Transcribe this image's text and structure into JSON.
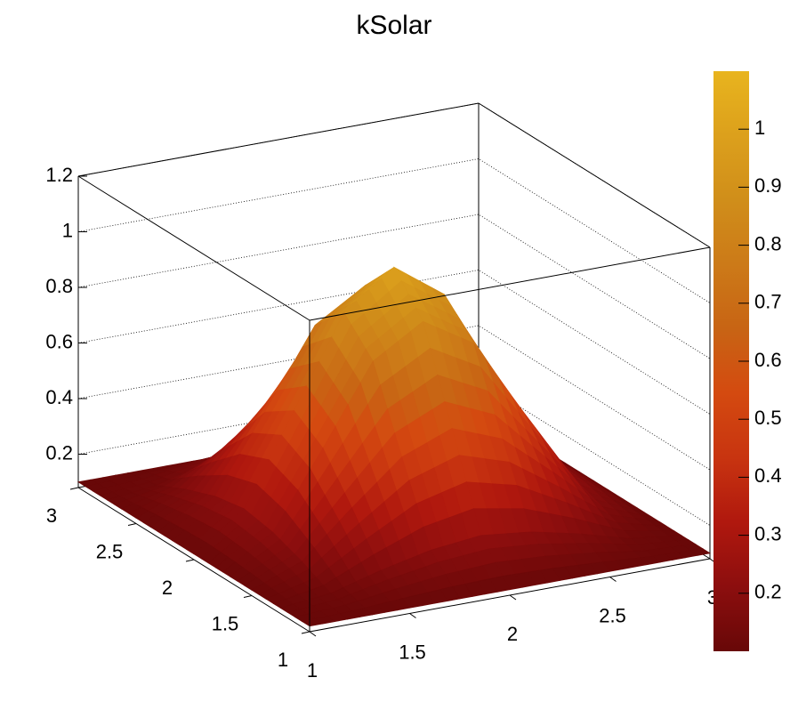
{
  "chart_data": {
    "type": "surface",
    "title": "kSolar",
    "x": [
      1,
      1.25,
      1.5,
      1.75,
      2,
      2.25,
      2.5,
      2.75,
      3
    ],
    "y": [
      1,
      1.25,
      1.5,
      1.75,
      2,
      2.25,
      2.5,
      2.75,
      3
    ],
    "z": [
      [
        0.1,
        0.1,
        0.1,
        0.1,
        0.1,
        0.1,
        0.1,
        0.1,
        0.1
      ],
      [
        0.1,
        0.12,
        0.17,
        0.21,
        0.23,
        0.21,
        0.17,
        0.12,
        0.1
      ],
      [
        0.1,
        0.17,
        0.33,
        0.48,
        0.55,
        0.48,
        0.33,
        0.17,
        0.1
      ],
      [
        0.1,
        0.21,
        0.48,
        0.76,
        0.87,
        0.76,
        0.48,
        0.21,
        0.1
      ],
      [
        0.1,
        0.23,
        0.55,
        0.87,
        1,
        0.87,
        0.55,
        0.23,
        0.1
      ],
      [
        0.1,
        0.21,
        0.48,
        0.76,
        0.87,
        0.76,
        0.48,
        0.21,
        0.1
      ],
      [
        0.1,
        0.17,
        0.33,
        0.48,
        0.55,
        0.48,
        0.33,
        0.17,
        0.1
      ],
      [
        0.1,
        0.12,
        0.17,
        0.21,
        0.23,
        0.21,
        0.17,
        0.12,
        0.1
      ],
      [
        0.1,
        0.1,
        0.1,
        0.1,
        0.1,
        0.1,
        0.1,
        0.1,
        0.1
      ]
    ],
    "xlim": [
      1,
      3
    ],
    "ylim": [
      1,
      3
    ],
    "zlim": [
      0.08,
      1.2
    ],
    "xticks": [
      1,
      1.5,
      2,
      2.5,
      3
    ],
    "yticks": [
      1,
      1.5,
      2,
      2.5,
      3
    ],
    "zticks": [
      0.2,
      0.4,
      0.6,
      0.8,
      1,
      1.2
    ],
    "colorbar": {
      "lim": [
        0.1,
        1.1
      ],
      "ticks": [
        0.2,
        0.3,
        0.4,
        0.5,
        0.6,
        0.7,
        0.8,
        0.9,
        1
      ]
    },
    "palette": [
      "#680808",
      "#8c0e0e",
      "#b0180e",
      "#c83410",
      "#d44a10",
      "#c86414",
      "#cc7a18",
      "#d08e1a",
      "#dca01c",
      "#e8b41e"
    ],
    "grid": true
  }
}
